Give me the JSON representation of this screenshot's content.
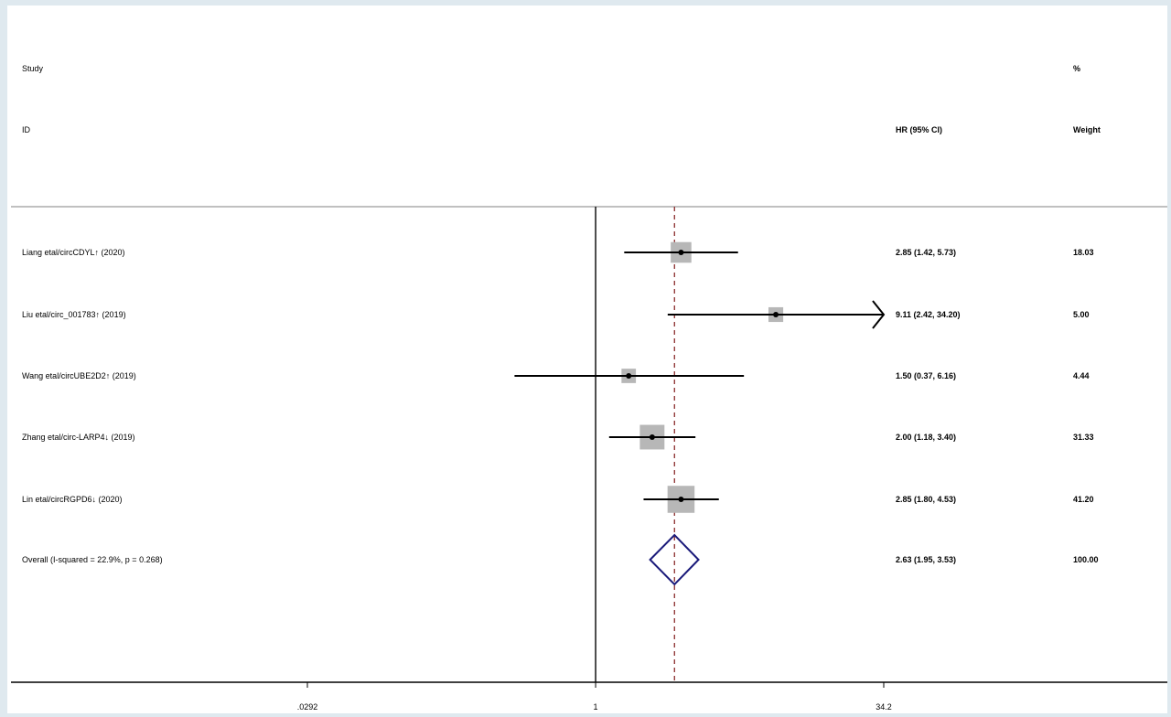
{
  "chart_data": {
    "type": "forest",
    "headers": {
      "study_line1": "Study",
      "study_line2": "ID",
      "estimate": "HR (95% CI)",
      "weight_line1": "%",
      "weight_line2": "Weight"
    },
    "x_scale": "log",
    "xlim": [
      0.0292,
      34.2
    ],
    "x_ticks": [
      0.0292,
      1,
      34.2
    ],
    "x_tick_labels": [
      ".0292",
      "1",
      "34.2"
    ],
    "null_line": 1,
    "pooled_line": 2.63,
    "studies": [
      {
        "label": "Liang etal/circCDYL↑ (2020)",
        "hr": 2.85,
        "lower": 1.42,
        "upper": 5.73,
        "ci_text": "2.85 (1.42, 5.73)",
        "weight": 18.03,
        "weight_text": "18.03"
      },
      {
        "label": "Liu etal/circ_001783↑ (2019)",
        "hr": 9.11,
        "lower": 2.42,
        "upper": 34.2,
        "ci_text": "9.11 (2.42, 34.20)",
        "weight": 5.0,
        "weight_text": "5.00"
      },
      {
        "label": "Wang etal/circUBE2D2↑ (2019)",
        "hr": 1.5,
        "lower": 0.37,
        "upper": 6.16,
        "ci_text": "1.50 (0.37, 6.16)",
        "weight": 4.44,
        "weight_text": "4.44"
      },
      {
        "label": "Zhang etal/circ-LARP4↓ (2019)",
        "hr": 2.0,
        "lower": 1.18,
        "upper": 3.4,
        "ci_text": "2.00 (1.18, 3.40)",
        "weight": 31.33,
        "weight_text": "31.33"
      },
      {
        "label": "Lin etal/circRGPD6↓ (2020)",
        "hr": 2.85,
        "lower": 1.8,
        "upper": 4.53,
        "ci_text": "2.85 (1.80, 4.53)",
        "weight": 41.2,
        "weight_text": "41.20"
      }
    ],
    "overall": {
      "label": "Overall  (I-squared = 22.9%, p = 0.268)",
      "hr": 2.63,
      "lower": 1.95,
      "upper": 3.53,
      "ci_text": "2.63 (1.95, 3.53)",
      "weight_text": "100.00"
    },
    "colors": {
      "box": "#b7b7b7",
      "line": "#000000",
      "diamond": "#1a1a7a",
      "pooled_line": "#8b2e2e"
    }
  }
}
